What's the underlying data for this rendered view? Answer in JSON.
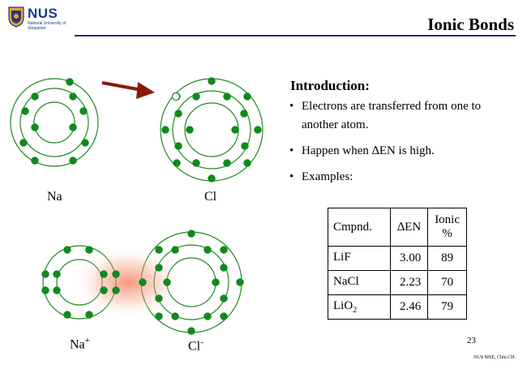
{
  "header": {
    "logo_text": "NUS",
    "logo_subtitle": "National University of Singapore",
    "title": "Ionic Bonds"
  },
  "diagram": {
    "atom_labels": {
      "na": "Na",
      "cl": "Cl",
      "na_ion": "Na",
      "na_ion_charge": "+",
      "cl_ion": "Cl",
      "cl_ion_charge": "-"
    },
    "colors": {
      "orbit": "#1e8a1e",
      "electron": "#0f8a1e",
      "arrow": "#8b1a0a",
      "glow": "#f08060"
    }
  },
  "content": {
    "heading": "Introduction:",
    "bullets": [
      "Electrons are transferred from one to another atom.",
      "Happen when ∆EN is high.",
      "Examples:"
    ]
  },
  "table": {
    "headers": [
      "Cmpnd.",
      "∆EN",
      "Ionic %"
    ],
    "rows": [
      {
        "compound": "LiF",
        "subscript": "",
        "den": "3.00",
        "ionic": "89"
      },
      {
        "compound": "NaCl",
        "subscript": "",
        "den": "2.23",
        "ionic": "70"
      },
      {
        "compound": "LiO",
        "subscript": "2",
        "den": "2.46",
        "ionic": "79"
      }
    ]
  },
  "footer": {
    "page_number": "23",
    "credit": "NUS MSE, Chiu CH."
  }
}
